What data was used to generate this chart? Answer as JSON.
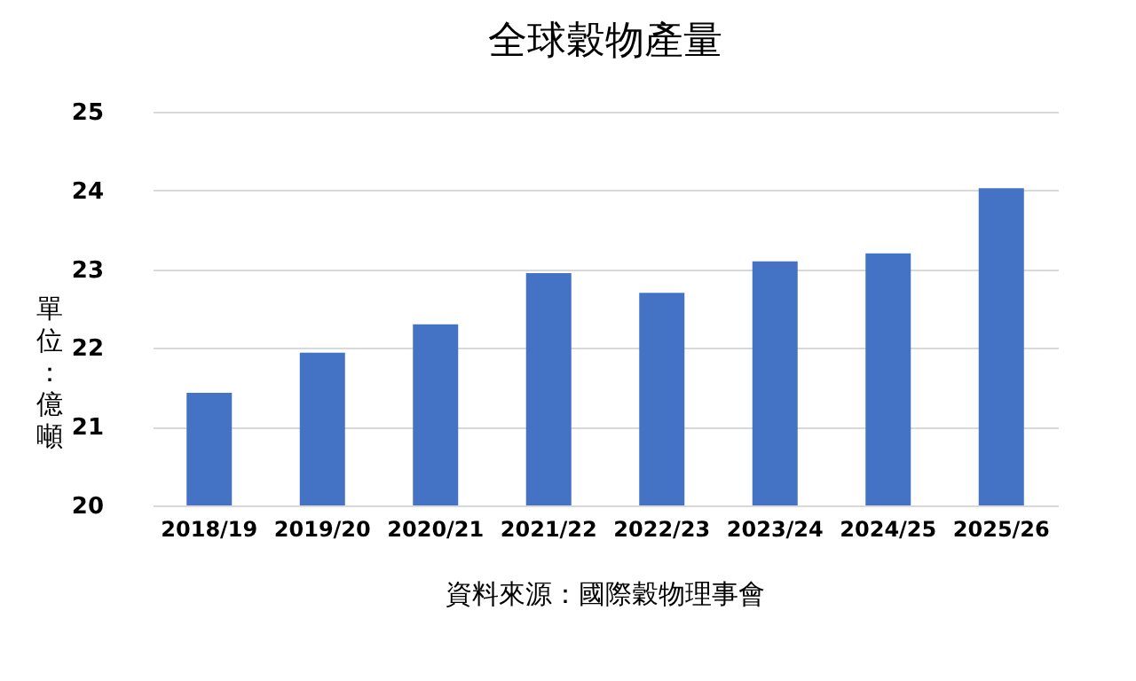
{
  "chart_data": {
    "type": "bar",
    "title": "全球穀物產量",
    "ylabel": "單位：億噸",
    "categories": [
      "2018/19",
      "2019/20",
      "2020/21",
      "2021/22",
      "2022/23",
      "2023/24",
      "2024/25",
      "2025/26"
    ],
    "values": [
      21.43,
      21.94,
      22.3,
      22.95,
      22.7,
      23.1,
      23.2,
      24.03
    ],
    "color": "#4472c4",
    "ylim": [
      20,
      25
    ],
    "yticks": [
      20,
      21,
      22,
      23,
      24,
      25
    ],
    "grid": "y",
    "annotations": [
      "資料來源：國際穀物理事會"
    ]
  }
}
